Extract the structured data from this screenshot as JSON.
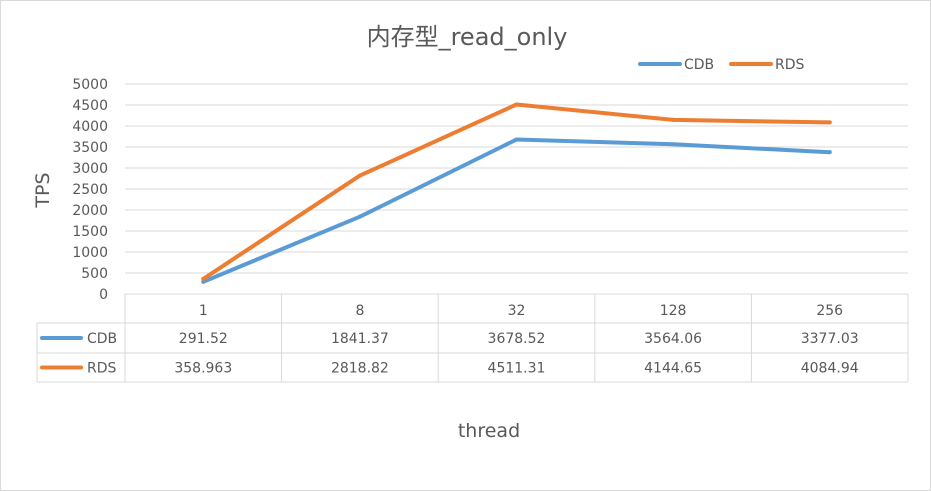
{
  "chart_data": {
    "type": "line",
    "title": "内存型_read_only",
    "xlabel": "thread",
    "ylabel": "TPS",
    "categories": [
      "1",
      "8",
      "32",
      "128",
      "256"
    ],
    "ylim": [
      0,
      5000
    ],
    "yticks": [
      0,
      500,
      1000,
      1500,
      2000,
      2500,
      3000,
      3500,
      4000,
      4500,
      5000
    ],
    "grid": true,
    "legend_position": "top-right",
    "data_table": true,
    "series": [
      {
        "name": "CDB",
        "color": "#5B9BD5",
        "values": [
          291.52,
          1841.37,
          3678.52,
          3564.06,
          3377.03
        ],
        "labels": [
          "291.52",
          "1841.37",
          "3678.52",
          "3564.06",
          "3377.03"
        ]
      },
      {
        "name": "RDS",
        "color": "#ED7D31",
        "values": [
          358.963,
          2818.82,
          4511.31,
          4144.65,
          4084.94
        ],
        "labels": [
          "358.963",
          "2818.82",
          "4511.31",
          "4144.65",
          "4084.94"
        ]
      }
    ]
  }
}
